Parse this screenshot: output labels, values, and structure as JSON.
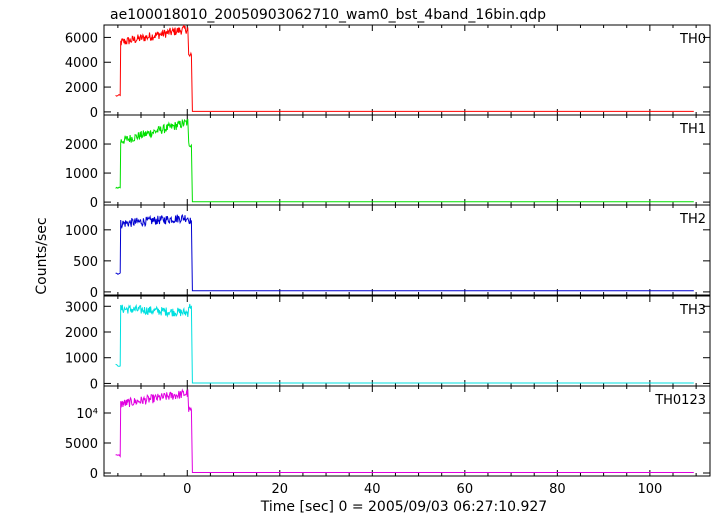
{
  "chart_data": {
    "type": "line",
    "title": "ae100018010_20050903062710_wam0_bst_4band_16bin.qdp",
    "xlabel": "Time [sec] 0 = 2005/09/03 06:27:10.927",
    "ylabel": "Counts/sec",
    "xlim": [
      -18,
      113
    ],
    "x_ticks": [
      0,
      20,
      40,
      60,
      80,
      100
    ],
    "grid": false,
    "panels": [
      {
        "name": "TH0",
        "color": "#ff0000",
        "ylim": [
          -250,
          7000
        ],
        "y_ticks": [
          {
            "v": 0,
            "t": "0"
          },
          {
            "v": 2000,
            "t": "2000"
          },
          {
            "v": 4000,
            "t": "4000"
          },
          {
            "v": 6000,
            "t": "6000"
          }
        ],
        "pre": 1300,
        "burst_start": 5600,
        "burst_end": 6700,
        "tail": 4500,
        "baseline": 40
      },
      {
        "name": "TH1",
        "color": "#00e000",
        "ylim": [
          -100,
          3000
        ],
        "y_ticks": [
          {
            "v": 0,
            "t": "0"
          },
          {
            "v": 1000,
            "t": "1000"
          },
          {
            "v": 2000,
            "t": "2000"
          }
        ],
        "pre": 500,
        "burst_start": 2100,
        "burst_end": 2750,
        "tail": 2000,
        "baseline": 10
      },
      {
        "name": "TH2",
        "color": "#0000d0",
        "ylim": [
          -50,
          1400
        ],
        "y_ticks": [
          {
            "v": 0,
            "t": "0"
          },
          {
            "v": 500,
            "t": "500"
          },
          {
            "v": 1000,
            "t": "1000"
          }
        ],
        "pre": 300,
        "burst_start": 1100,
        "burst_end": 1200,
        "tail": 1150,
        "baseline": 20
      },
      {
        "name": "TH3",
        "color": "#00e0e0",
        "ylim": [
          -100,
          3400
        ],
        "y_ticks": [
          {
            "v": 0,
            "t": "0"
          },
          {
            "v": 1000,
            "t": "1000"
          },
          {
            "v": 2000,
            "t": "2000"
          },
          {
            "v": 3000,
            "t": "3000"
          }
        ],
        "pre": 700,
        "burst_start": 2900,
        "burst_end": 2750,
        "tail": 3000,
        "baseline": 15
      },
      {
        "name": "TH0123",
        "color": "#e000e0",
        "ylim": [
          -500,
          14500
        ],
        "y_ticks": [
          {
            "v": 0,
            "t": "0"
          },
          {
            "v": 5000,
            "t": "5000"
          },
          {
            "v": 10000,
            "t": "10⁴"
          }
        ],
        "pre": 2900,
        "burst_start": 11500,
        "burst_end": 13300,
        "tail": 10500,
        "baseline": 80
      }
    ]
  }
}
